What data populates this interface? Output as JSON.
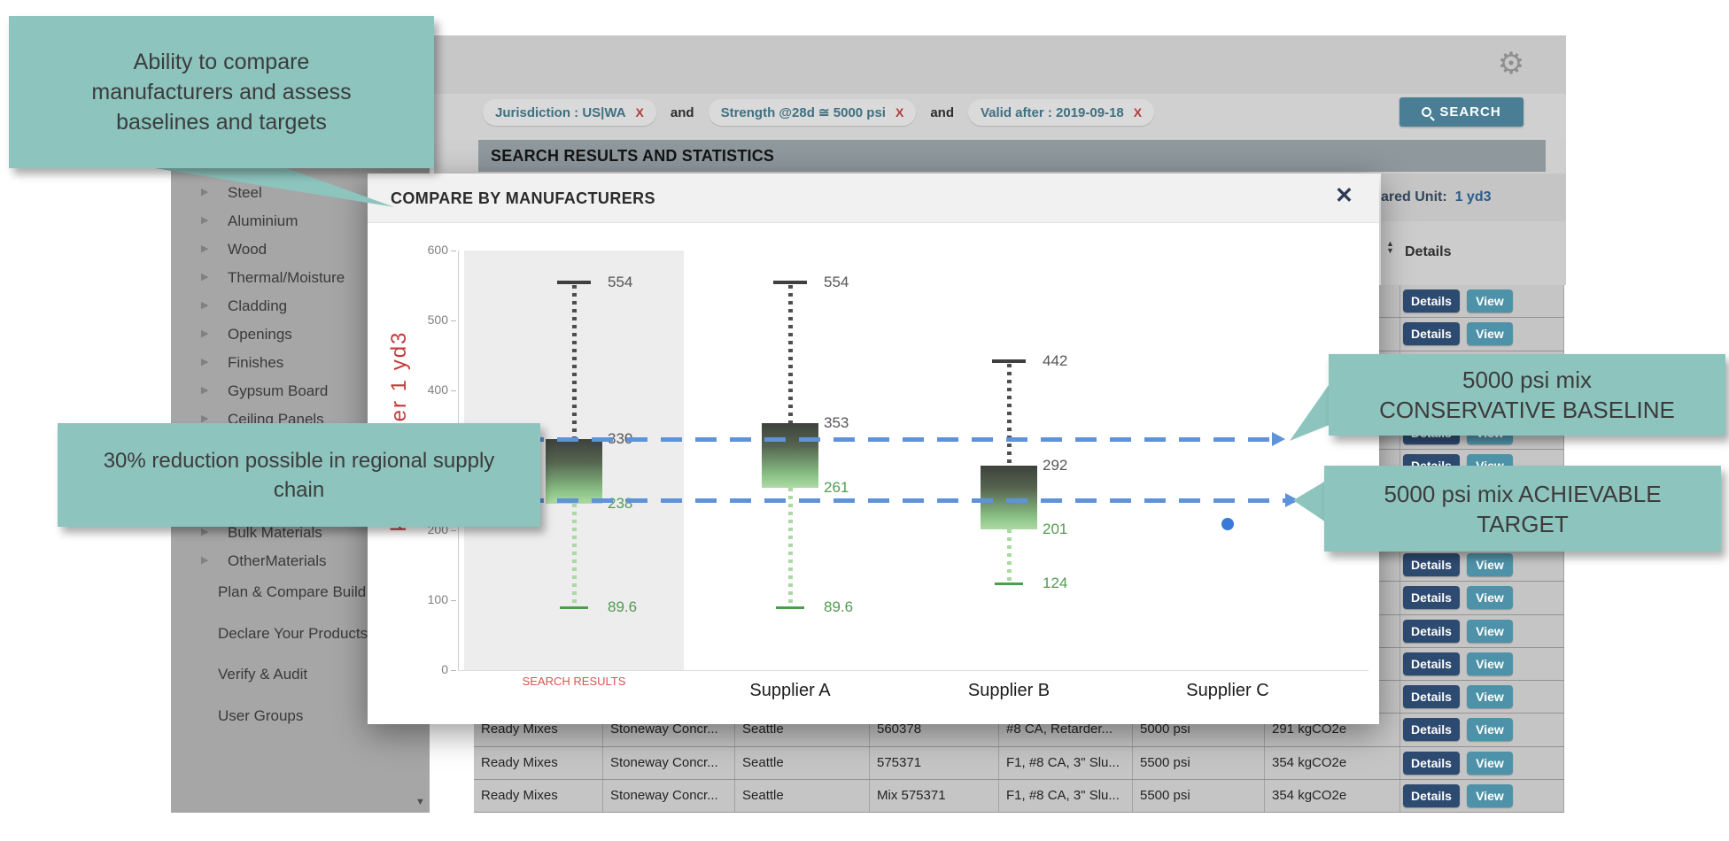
{
  "callouts": {
    "compare_note": "Ability to compare manufacturers and assess baselines and targets",
    "reduction_note": "30% reduction possible in regional supply chain",
    "baseline_line1": "5000 psi mix",
    "baseline_line2": "CONSERVATIVE BASELINE",
    "target_line1": "5000 psi mix ACHIEVABLE",
    "target_line2": "TARGET",
    "color": "#8dc4be"
  },
  "top_bar": {
    "search_button": "SEARCH"
  },
  "filter_bar": {
    "chips": [
      "Jurisdiction : US|WA",
      "Strength @28d ≅ 5000 psi",
      "Valid after : 2019-09-18"
    ],
    "chip_remove": "X",
    "conjunction": "and"
  },
  "results_header": {
    "title": "SEARCH RESULTS AND STATISTICS",
    "declared_unit_label": "ared Unit:",
    "declared_unit_value": "1 yd3"
  },
  "sidebar": {
    "categories": [
      "Steel",
      "Aluminium",
      "Wood",
      "Thermal/Moisture",
      "Cladding",
      "Openings",
      "Finishes",
      "Gypsum Board",
      "Ceiling Panels",
      "Bulk Materials",
      "OtherMaterials"
    ],
    "links": [
      "Plan & Compare Build",
      "Declare Your Products",
      "Verify & Audit",
      "User Groups"
    ]
  },
  "modal": {
    "title": "COMPARE BY MANUFACTURERS"
  },
  "chart_data": {
    "type": "boxplot",
    "title": "COMPARE BY MANUFACTURERS",
    "ylabel": "kgCO2e per 1 yd3",
    "ylim": [
      0,
      600
    ],
    "yticks": [
      0,
      100,
      200,
      300,
      400,
      500,
      600
    ],
    "categories": [
      "SEARCH RESULTS",
      "Supplier A",
      "Supplier B",
      "Supplier C"
    ],
    "boxes": [
      {
        "category": "SEARCH RESULTS",
        "whisker_high": 554,
        "q3": 330,
        "q1": 238,
        "whisker_low": 89.6,
        "highlighted_column": true
      },
      {
        "category": "Supplier A",
        "whisker_high": 554,
        "q3": 353,
        "q1": 261,
        "whisker_low": 89.6
      },
      {
        "category": "Supplier B",
        "whisker_high": 442,
        "q3": 292,
        "q1": 201,
        "whisker_low": 124
      },
      {
        "category": "Supplier C",
        "point": 209
      }
    ],
    "reference_lines": [
      {
        "name": "5000 psi mix CONSERVATIVE BASELINE",
        "value": 330,
        "style": "dashed"
      },
      {
        "name": "5000 psi mix ACHIEVABLE TARGET",
        "value": 243,
        "style": "dashed"
      }
    ],
    "reference_line_color": "#5e92d9",
    "upper_label_color": "#565656",
    "lower_label_color": "#4f9d51",
    "grid": false,
    "legend": false
  },
  "results_table": {
    "details_column_header": "Details",
    "details_button": "Details",
    "view_button": "View",
    "button_only_row_count": 13,
    "rows": [
      {
        "cells": [
          "Ready Mixes",
          "Stoneway Concr...",
          "Seattle",
          "560378",
          "#8 CA, Retarder...",
          "5000 psi",
          "291 kgCO2e"
        ]
      },
      {
        "cells": [
          "Ready Mixes",
          "Stoneway Concr...",
          "Seattle",
          "575371",
          "F1, #8 CA, 3\" Slu...",
          "5500 psi",
          "354 kgCO2e"
        ]
      },
      {
        "cells": [
          "Ready Mixes",
          "Stoneway Concr...",
          "Seattle",
          "Mix 575371",
          "F1, #8 CA, 3\" Slu...",
          "5500 psi",
          "354 kgCO2e"
        ]
      }
    ]
  },
  "icons": {
    "gear": "⚙",
    "close": "✕",
    "category_arrow": "▶",
    "scroll_down": "▼",
    "sort_up": "▲",
    "sort_down": "▼"
  }
}
